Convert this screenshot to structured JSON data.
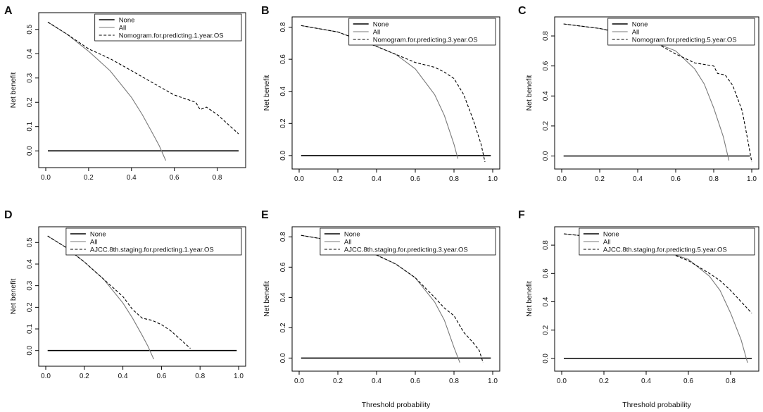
{
  "figure": {
    "colors": {
      "none": "#000000",
      "all": "#7a7a7a",
      "model": "#000000",
      "axis": "#000000"
    }
  },
  "chart_data": [
    {
      "panel": "A",
      "type": "line",
      "xlabel": "",
      "ylabel": "Net benefit",
      "xlim": [
        0,
        0.9
      ],
      "ylim": [
        -0.04,
        0.54
      ],
      "xticks": [
        0.0,
        0.2,
        0.4,
        0.6,
        0.8
      ],
      "xtick_labels": [
        "0.0",
        "0.2",
        "0.4",
        "0.6",
        "0.8"
      ],
      "yticks": [
        0.0,
        0.1,
        0.2,
        0.3,
        0.4,
        0.5
      ],
      "ytick_labels": [
        "0.0",
        "0.1",
        "0.2",
        "0.3",
        "0.4",
        "0.5"
      ],
      "legend_position": "top-right",
      "series": [
        {
          "name": "None",
          "style": "solid-black",
          "x": [
            0.01,
            0.9
          ],
          "y": [
            0.0,
            0.0
          ]
        },
        {
          "name": "All",
          "style": "solid-gray",
          "x": [
            0.01,
            0.1,
            0.2,
            0.3,
            0.4,
            0.45,
            0.5,
            0.53,
            0.56
          ],
          "y": [
            0.53,
            0.48,
            0.41,
            0.33,
            0.22,
            0.15,
            0.07,
            0.02,
            -0.04
          ]
        },
        {
          "name": "Nomogram.for.predicting.1.year.OS",
          "style": "dashed-black",
          "x": [
            0.01,
            0.1,
            0.2,
            0.3,
            0.4,
            0.5,
            0.6,
            0.7,
            0.72,
            0.75,
            0.8,
            0.9
          ],
          "y": [
            0.53,
            0.48,
            0.42,
            0.38,
            0.33,
            0.28,
            0.23,
            0.2,
            0.17,
            0.18,
            0.15,
            0.07
          ]
        }
      ]
    },
    {
      "panel": "B",
      "type": "line",
      "xlabel": "",
      "ylabel": "Net benefit",
      "xlim": [
        0,
        1.0
      ],
      "ylim": [
        -0.04,
        0.82
      ],
      "xticks": [
        0.0,
        0.2,
        0.4,
        0.6,
        0.8,
        1.0
      ],
      "xtick_labels": [
        "0.0",
        "0.2",
        "0.4",
        "0.6",
        "0.8",
        "1.0"
      ],
      "yticks": [
        0.0,
        0.2,
        0.4,
        0.6,
        0.8
      ],
      "ytick_labels": [
        "0.0",
        "0.2",
        "0.4",
        "0.6",
        "0.8"
      ],
      "legend_position": "top-right",
      "series": [
        {
          "name": "None",
          "style": "solid-black",
          "x": [
            0.01,
            0.99
          ],
          "y": [
            0.0,
            0.0
          ]
        },
        {
          "name": "All",
          "style": "solid-gray",
          "x": [
            0.01,
            0.2,
            0.4,
            0.5,
            0.6,
            0.7,
            0.75,
            0.8,
            0.82
          ],
          "y": [
            0.81,
            0.77,
            0.68,
            0.63,
            0.54,
            0.38,
            0.25,
            0.07,
            -0.02
          ]
        },
        {
          "name": "Nomogram.for.predicting.3.year.OS",
          "style": "dashed-black",
          "x": [
            0.01,
            0.2,
            0.4,
            0.5,
            0.6,
            0.7,
            0.75,
            0.8,
            0.85,
            0.9,
            0.94,
            0.96
          ],
          "y": [
            0.81,
            0.77,
            0.68,
            0.63,
            0.58,
            0.55,
            0.52,
            0.48,
            0.38,
            0.22,
            0.07,
            -0.04
          ]
        }
      ]
    },
    {
      "panel": "C",
      "type": "line",
      "xlabel": "",
      "ylabel": "Net benefit",
      "xlim": [
        0,
        1.0
      ],
      "ylim": [
        -0.04,
        0.88
      ],
      "xticks": [
        0.0,
        0.2,
        0.4,
        0.6,
        0.8,
        1.0
      ],
      "xtick_labels": [
        "0.0",
        "0.2",
        "0.4",
        "0.6",
        "0.8",
        "1.0"
      ],
      "yticks": [
        0.0,
        0.2,
        0.4,
        0.6,
        0.8
      ],
      "ytick_labels": [
        "0.0",
        "0.2",
        "0.4",
        "0.6",
        "0.8"
      ],
      "legend_position": "top-right",
      "series": [
        {
          "name": "None",
          "style": "solid-black",
          "x": [
            0.01,
            0.99
          ],
          "y": [
            0.0,
            0.0
          ]
        },
        {
          "name": "All",
          "style": "solid-gray",
          "x": [
            0.01,
            0.2,
            0.4,
            0.5,
            0.6,
            0.7,
            0.75,
            0.8,
            0.85,
            0.88
          ],
          "y": [
            0.88,
            0.85,
            0.8,
            0.75,
            0.7,
            0.58,
            0.48,
            0.32,
            0.13,
            -0.03
          ]
        },
        {
          "name": "Nomogram.for.predicting.5.year.OS",
          "style": "dashed-black",
          "x": [
            0.01,
            0.2,
            0.4,
            0.5,
            0.6,
            0.7,
            0.75,
            0.8,
            0.82,
            0.86,
            0.9,
            0.95,
            0.98,
            1.0
          ],
          "y": [
            0.88,
            0.85,
            0.79,
            0.75,
            0.68,
            0.62,
            0.61,
            0.6,
            0.55,
            0.54,
            0.47,
            0.3,
            0.1,
            -0.04
          ]
        }
      ]
    },
    {
      "panel": "D",
      "type": "line",
      "xlabel": "",
      "ylabel": "Net benefit",
      "xlim": [
        0,
        1.0
      ],
      "ylim": [
        -0.04,
        0.54
      ],
      "xticks": [
        0.0,
        0.2,
        0.4,
        0.6,
        0.8,
        1.0
      ],
      "xtick_labels": [
        "0.0",
        "0.2",
        "0.4",
        "0.6",
        "0.8",
        "1.0"
      ],
      "yticks": [
        0.0,
        0.1,
        0.2,
        0.3,
        0.4,
        0.5
      ],
      "ytick_labels": [
        "0.0",
        "0.1",
        "0.2",
        "0.3",
        "0.4",
        "0.5"
      ],
      "legend_position": "top-right",
      "series": [
        {
          "name": "None",
          "style": "solid-black",
          "x": [
            0.01,
            0.99
          ],
          "y": [
            0.0,
            0.0
          ]
        },
        {
          "name": "All",
          "style": "solid-gray",
          "x": [
            0.01,
            0.1,
            0.2,
            0.3,
            0.4,
            0.45,
            0.5,
            0.53,
            0.56
          ],
          "y": [
            0.53,
            0.48,
            0.41,
            0.33,
            0.22,
            0.15,
            0.07,
            0.02,
            -0.04
          ]
        },
        {
          "name": "AJCC.8th.staging.for.predicting.1.year.OS",
          "style": "dashed-black",
          "x": [
            0.01,
            0.1,
            0.2,
            0.3,
            0.35,
            0.4,
            0.45,
            0.5,
            0.55,
            0.6,
            0.65,
            0.7,
            0.75
          ],
          "y": [
            0.53,
            0.48,
            0.41,
            0.33,
            0.29,
            0.25,
            0.19,
            0.15,
            0.14,
            0.12,
            0.09,
            0.05,
            0.01
          ]
        }
      ]
    },
    {
      "panel": "E",
      "type": "line",
      "xlabel": "Threshold probability",
      "ylabel": "Net benefit",
      "xlim": [
        0,
        1.0
      ],
      "ylim": [
        -0.04,
        0.82
      ],
      "xticks": [
        0.0,
        0.2,
        0.4,
        0.6,
        0.8,
        1.0
      ],
      "xtick_labels": [
        "0.0",
        "0.2",
        "0.4",
        "0.6",
        "0.8",
        "1.0"
      ],
      "yticks": [
        0.0,
        0.2,
        0.4,
        0.6,
        0.8
      ],
      "ytick_labels": [
        "0.0",
        "0.2",
        "0.4",
        "0.6",
        "0.8"
      ],
      "legend_position": "top-right",
      "series": [
        {
          "name": "None",
          "style": "solid-black",
          "x": [
            0.01,
            0.99
          ],
          "y": [
            0.0,
            0.0
          ]
        },
        {
          "name": "All",
          "style": "solid-gray",
          "x": [
            0.01,
            0.2,
            0.4,
            0.5,
            0.6,
            0.7,
            0.75,
            0.8,
            0.83
          ],
          "y": [
            0.81,
            0.77,
            0.68,
            0.62,
            0.53,
            0.37,
            0.25,
            0.07,
            -0.03
          ]
        },
        {
          "name": "AJCC.8th.staging.for.predicting.3.year.OS",
          "style": "dashed-black",
          "x": [
            0.01,
            0.2,
            0.4,
            0.5,
            0.6,
            0.7,
            0.75,
            0.8,
            0.85,
            0.9,
            0.93,
            0.95
          ],
          "y": [
            0.81,
            0.77,
            0.68,
            0.62,
            0.53,
            0.4,
            0.33,
            0.28,
            0.17,
            0.1,
            0.05,
            -0.03
          ]
        }
      ]
    },
    {
      "panel": "F",
      "type": "line",
      "xlabel": "Threshold probability",
      "ylabel": "Net benefit",
      "xlim": [
        0,
        0.9
      ],
      "ylim": [
        -0.04,
        0.88
      ],
      "xticks": [
        0.0,
        0.2,
        0.4,
        0.6,
        0.8
      ],
      "xtick_labels": [
        "0.0",
        "0.2",
        "0.4",
        "0.6",
        "0.8"
      ],
      "yticks": [
        0.0,
        0.2,
        0.4,
        0.6,
        0.8
      ],
      "ytick_labels": [
        "0.0",
        "0.2",
        "0.4",
        "0.6",
        "0.8"
      ],
      "legend_position": "top-right",
      "series": [
        {
          "name": "None",
          "style": "solid-black",
          "x": [
            0.01,
            0.9
          ],
          "y": [
            0.0,
            0.0
          ]
        },
        {
          "name": "All",
          "style": "solid-gray",
          "x": [
            0.01,
            0.2,
            0.4,
            0.5,
            0.6,
            0.7,
            0.75,
            0.8,
            0.85,
            0.88
          ],
          "y": [
            0.88,
            0.85,
            0.8,
            0.75,
            0.7,
            0.58,
            0.48,
            0.32,
            0.13,
            -0.03
          ]
        },
        {
          "name": "AJCC.8th.staging.for.predicting.5.year.OS",
          "style": "dashed-black",
          "x": [
            0.01,
            0.2,
            0.4,
            0.5,
            0.6,
            0.7,
            0.75,
            0.8,
            0.85,
            0.9
          ],
          "y": [
            0.88,
            0.85,
            0.79,
            0.75,
            0.69,
            0.6,
            0.55,
            0.48,
            0.4,
            0.32
          ]
        }
      ]
    }
  ]
}
